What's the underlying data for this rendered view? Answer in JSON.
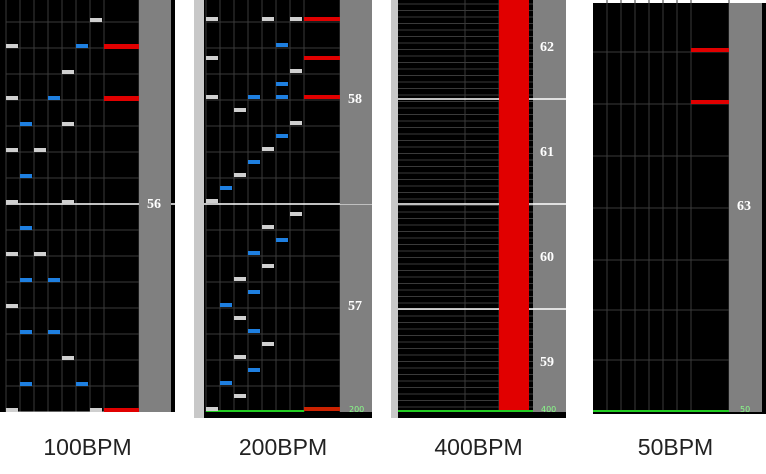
{
  "panels": [
    {
      "caption": "100BPM",
      "measure_labels": [
        "56"
      ],
      "bpm_label": ""
    },
    {
      "caption": "200BPM",
      "measure_labels": [
        "58",
        "57"
      ],
      "bpm_label": "200"
    },
    {
      "caption": "400BPM",
      "measure_labels": [
        "62",
        "61",
        "60",
        "59"
      ],
      "bpm_label": "400"
    },
    {
      "caption": "50BPM",
      "measure_labels": [
        "63"
      ],
      "bpm_label": "50"
    }
  ],
  "colors": {
    "background": "#000000",
    "grid": "#3a3a3a",
    "measure_line": "#ffffff",
    "note_white": "#cfcfcf",
    "note_blue": "#1e7fe0",
    "note_red": "#e10000",
    "bpm_line": "#22cc22",
    "measure_bar": "#808080"
  }
}
